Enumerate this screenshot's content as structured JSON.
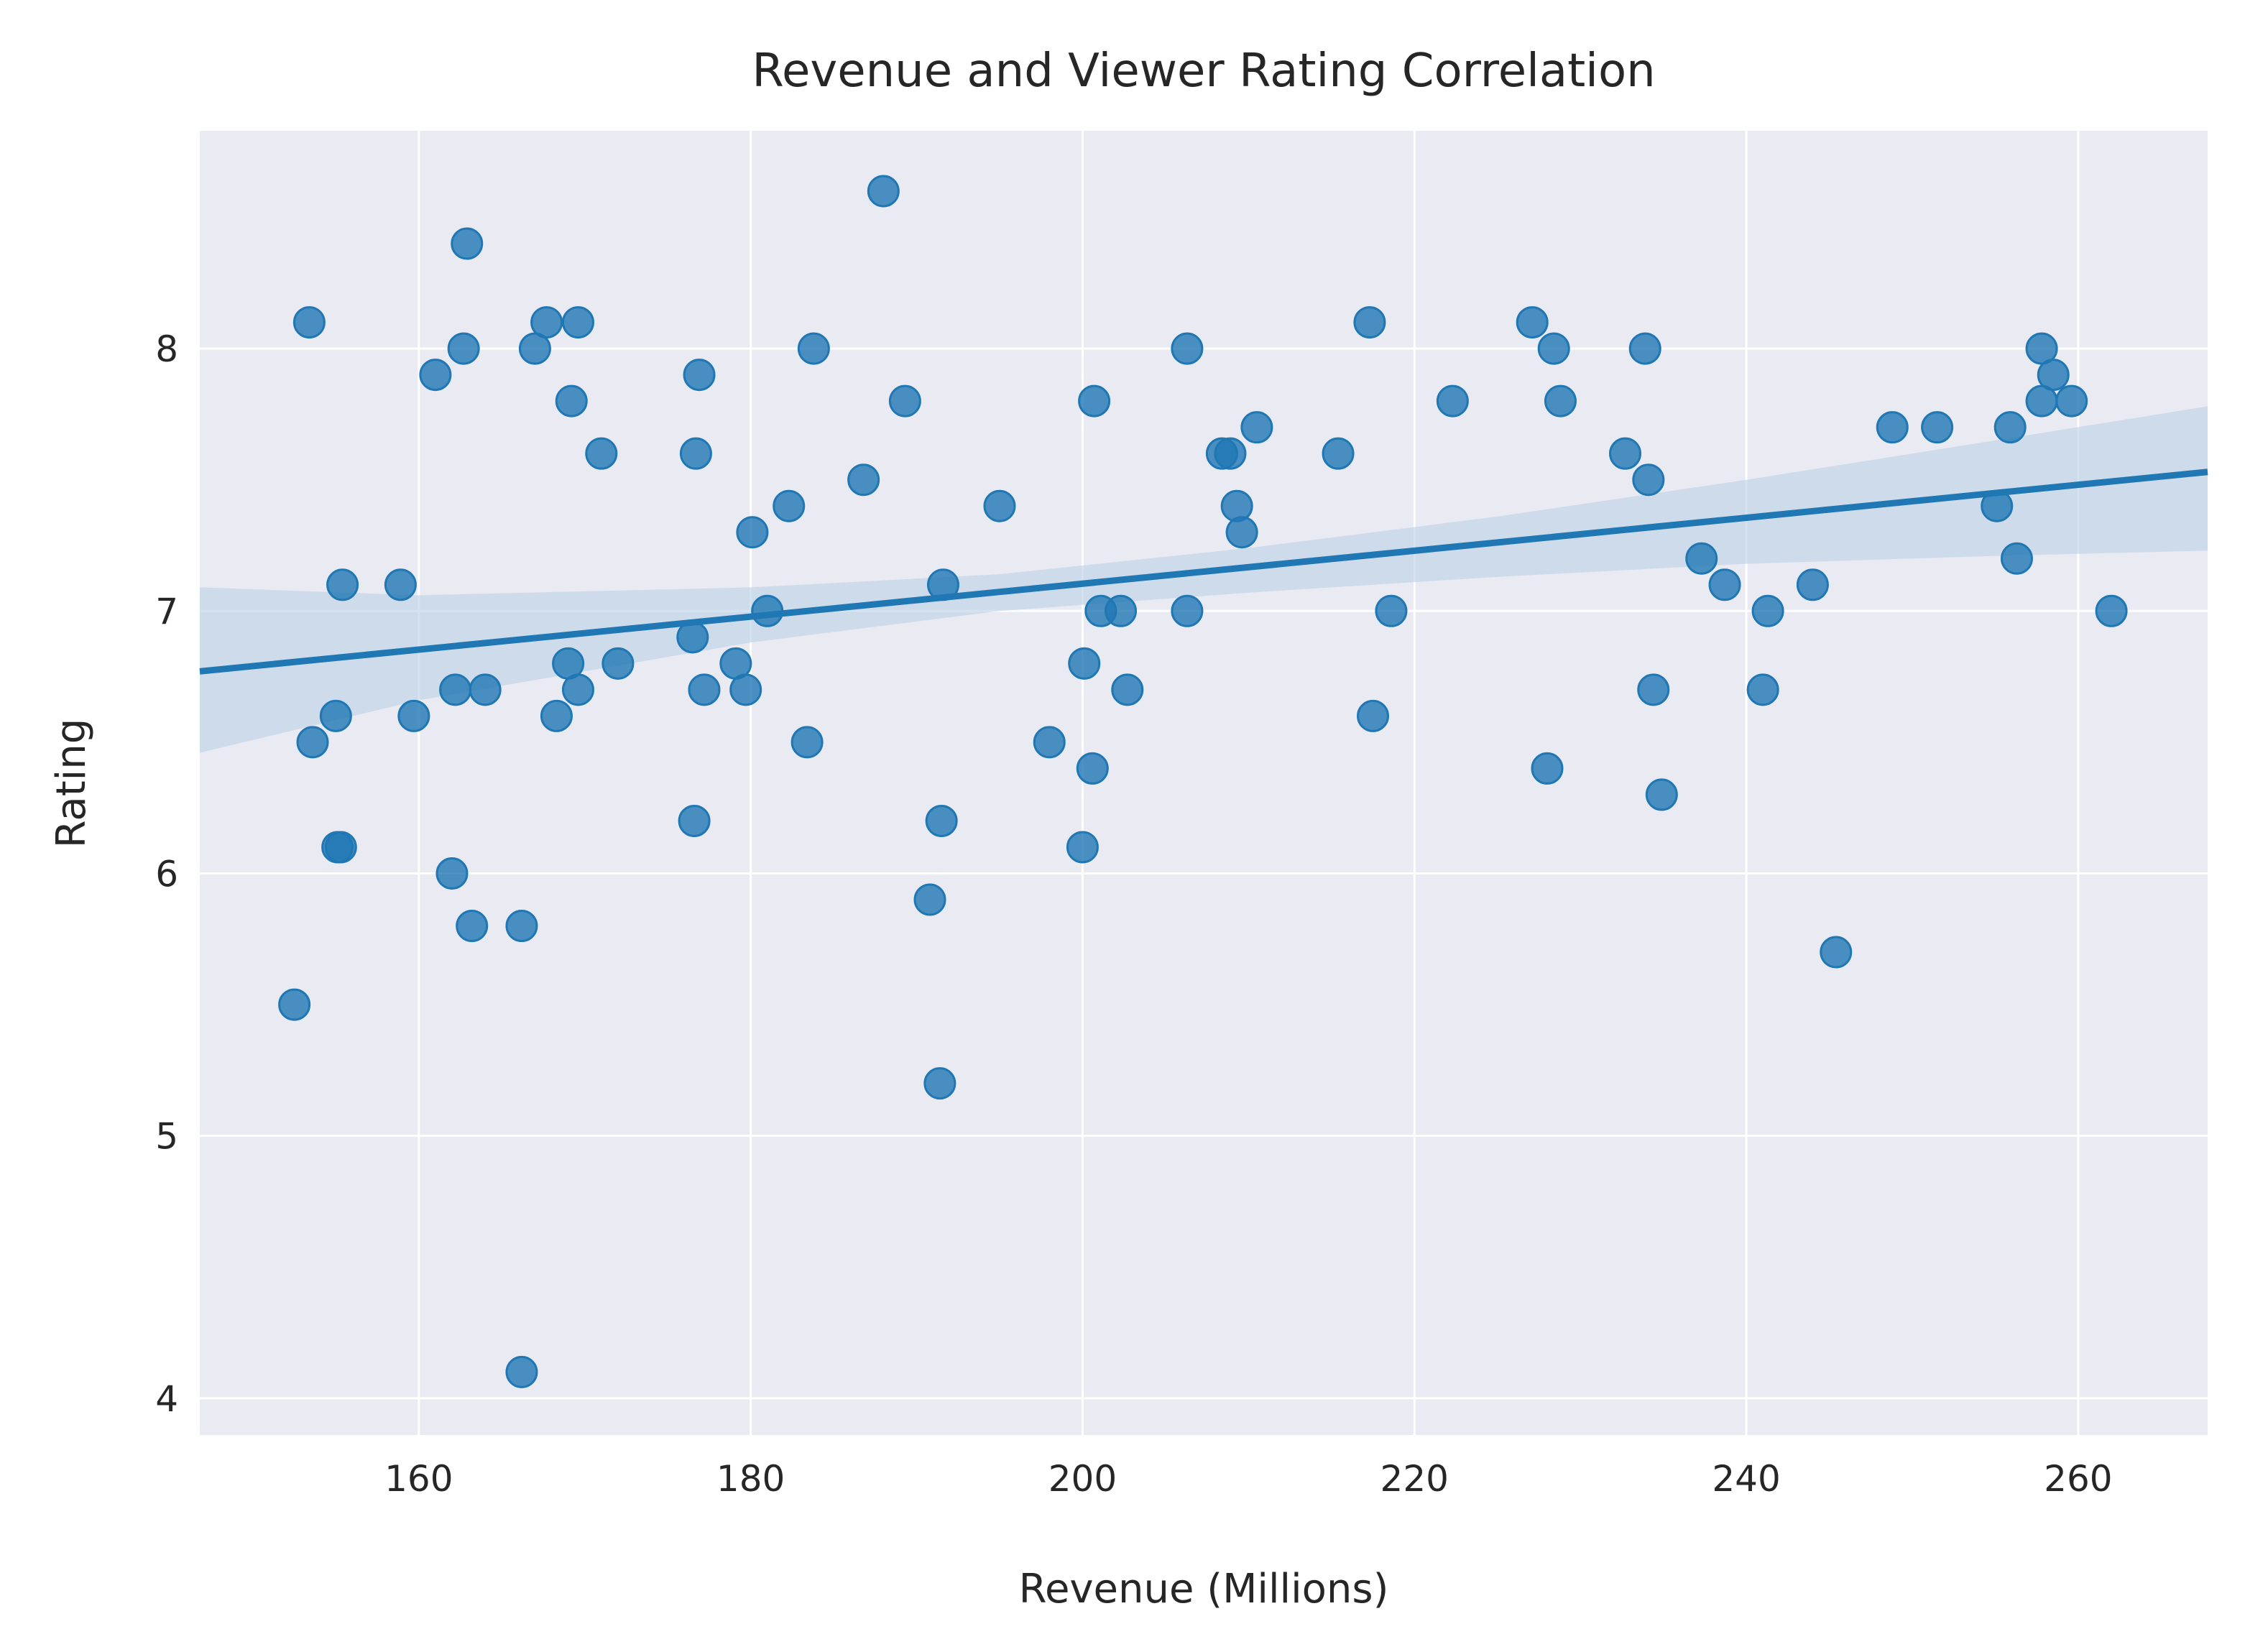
{
  "chart_data": {
    "type": "scatter",
    "title": "Revenue and Viewer Rating Correlation",
    "xlabel": "Revenue (Millions)",
    "ylabel": "Rating",
    "xlim": [
      146.8,
      267.8
    ],
    "ylim": [
      3.86,
      8.83
    ],
    "xticks": [
      160,
      180,
      200,
      220,
      240,
      260
    ],
    "yticks": [
      4,
      5,
      6,
      7,
      8
    ],
    "grid": true,
    "colors": {
      "background": "#eaeaf2",
      "grid": "#ffffff",
      "points": "#1f77b4",
      "regression_line": "#1f77b4",
      "confidence_band": "#bfd3e6"
    },
    "points": [
      {
        "x": 152.5,
        "y": 5.5
      },
      {
        "x": 153.4,
        "y": 8.1
      },
      {
        "x": 153.6,
        "y": 6.5
      },
      {
        "x": 155.0,
        "y": 6.6
      },
      {
        "x": 155.1,
        "y": 6.1
      },
      {
        "x": 155.3,
        "y": 6.1
      },
      {
        "x": 155.4,
        "y": 7.1
      },
      {
        "x": 158.9,
        "y": 7.1
      },
      {
        "x": 159.7,
        "y": 6.6
      },
      {
        "x": 161.0,
        "y": 7.9
      },
      {
        "x": 162.0,
        "y": 6.0
      },
      {
        "x": 162.2,
        "y": 6.7
      },
      {
        "x": 162.7,
        "y": 8.0
      },
      {
        "x": 162.9,
        "y": 8.4
      },
      {
        "x": 163.2,
        "y": 5.8
      },
      {
        "x": 164.0,
        "y": 6.7
      },
      {
        "x": 166.2,
        "y": 5.8
      },
      {
        "x": 166.2,
        "y": 4.1
      },
      {
        "x": 167.0,
        "y": 8.0
      },
      {
        "x": 167.7,
        "y": 8.1
      },
      {
        "x": 168.3,
        "y": 6.6
      },
      {
        "x": 169.0,
        "y": 6.8
      },
      {
        "x": 169.2,
        "y": 7.8
      },
      {
        "x": 169.6,
        "y": 8.1
      },
      {
        "x": 169.6,
        "y": 6.7
      },
      {
        "x": 171.0,
        "y": 7.6
      },
      {
        "x": 172.0,
        "y": 6.8
      },
      {
        "x": 176.5,
        "y": 6.9
      },
      {
        "x": 176.6,
        "y": 6.2
      },
      {
        "x": 176.7,
        "y": 7.6
      },
      {
        "x": 176.9,
        "y": 7.9
      },
      {
        "x": 177.2,
        "y": 6.7
      },
      {
        "x": 179.1,
        "y": 6.8
      },
      {
        "x": 179.7,
        "y": 6.7
      },
      {
        "x": 180.1,
        "y": 7.3
      },
      {
        "x": 181.0,
        "y": 7.0
      },
      {
        "x": 182.3,
        "y": 7.4
      },
      {
        "x": 183.4,
        "y": 6.5
      },
      {
        "x": 183.8,
        "y": 8.0
      },
      {
        "x": 186.8,
        "y": 7.5
      },
      {
        "x": 188.0,
        "y": 8.6
      },
      {
        "x": 189.3,
        "y": 7.8
      },
      {
        "x": 190.8,
        "y": 5.9
      },
      {
        "x": 191.4,
        "y": 5.2
      },
      {
        "x": 191.5,
        "y": 6.2
      },
      {
        "x": 191.6,
        "y": 7.1
      },
      {
        "x": 195.0,
        "y": 7.4
      },
      {
        "x": 198.0,
        "y": 6.5
      },
      {
        "x": 200.0,
        "y": 6.1
      },
      {
        "x": 200.1,
        "y": 6.8
      },
      {
        "x": 200.6,
        "y": 6.4
      },
      {
        "x": 200.7,
        "y": 7.8
      },
      {
        "x": 201.1,
        "y": 7.0
      },
      {
        "x": 202.3,
        "y": 7.0
      },
      {
        "x": 202.7,
        "y": 6.7
      },
      {
        "x": 206.3,
        "y": 8.0
      },
      {
        "x": 206.3,
        "y": 7.0
      },
      {
        "x": 208.4,
        "y": 7.6
      },
      {
        "x": 208.9,
        "y": 7.6
      },
      {
        "x": 209.3,
        "y": 7.4
      },
      {
        "x": 209.6,
        "y": 7.3
      },
      {
        "x": 210.5,
        "y": 7.7
      },
      {
        "x": 215.4,
        "y": 7.6
      },
      {
        "x": 217.3,
        "y": 8.1
      },
      {
        "x": 217.5,
        "y": 6.6
      },
      {
        "x": 218.6,
        "y": 7.0
      },
      {
        "x": 222.3,
        "y": 7.8
      },
      {
        "x": 227.1,
        "y": 8.1
      },
      {
        "x": 228.0,
        "y": 6.4
      },
      {
        "x": 228.4,
        "y": 8.0
      },
      {
        "x": 228.8,
        "y": 7.8
      },
      {
        "x": 232.7,
        "y": 7.6
      },
      {
        "x": 233.9,
        "y": 8.0
      },
      {
        "x": 234.1,
        "y": 7.5
      },
      {
        "x": 234.4,
        "y": 6.7
      },
      {
        "x": 234.9,
        "y": 6.3
      },
      {
        "x": 237.3,
        "y": 7.2
      },
      {
        "x": 238.7,
        "y": 7.1
      },
      {
        "x": 241.0,
        "y": 6.7
      },
      {
        "x": 241.3,
        "y": 7.0
      },
      {
        "x": 244.0,
        "y": 7.1
      },
      {
        "x": 245.4,
        "y": 5.7
      },
      {
        "x": 248.8,
        "y": 7.7
      },
      {
        "x": 251.5,
        "y": 7.7
      },
      {
        "x": 255.1,
        "y": 7.4
      },
      {
        "x": 255.9,
        "y": 7.7
      },
      {
        "x": 256.3,
        "y": 7.2
      },
      {
        "x": 257.8,
        "y": 8.0
      },
      {
        "x": 257.8,
        "y": 7.8
      },
      {
        "x": 258.5,
        "y": 7.9
      },
      {
        "x": 259.6,
        "y": 7.8
      },
      {
        "x": 262.0,
        "y": 7.0
      }
    ],
    "regression": {
      "x_start": 146.8,
      "y_start": 6.77,
      "x_end": 267.8,
      "y_end": 7.53,
      "ci_upper": [
        {
          "x": 146.8,
          "y": 7.09
        },
        {
          "x": 160,
          "y": 7.06
        },
        {
          "x": 180,
          "y": 7.09
        },
        {
          "x": 195,
          "y": 7.14
        },
        {
          "x": 210,
          "y": 7.24
        },
        {
          "x": 225,
          "y": 7.36
        },
        {
          "x": 240,
          "y": 7.5
        },
        {
          "x": 255,
          "y": 7.65
        },
        {
          "x": 267.8,
          "y": 7.78
        }
      ],
      "ci_lower": [
        {
          "x": 146.8,
          "y": 6.46
        },
        {
          "x": 160,
          "y": 6.66
        },
        {
          "x": 180,
          "y": 6.88
        },
        {
          "x": 195,
          "y": 7.0
        },
        {
          "x": 210,
          "y": 7.07
        },
        {
          "x": 225,
          "y": 7.13
        },
        {
          "x": 240,
          "y": 7.18
        },
        {
          "x": 255,
          "y": 7.21
        },
        {
          "x": 267.8,
          "y": 7.23
        }
      ]
    }
  }
}
